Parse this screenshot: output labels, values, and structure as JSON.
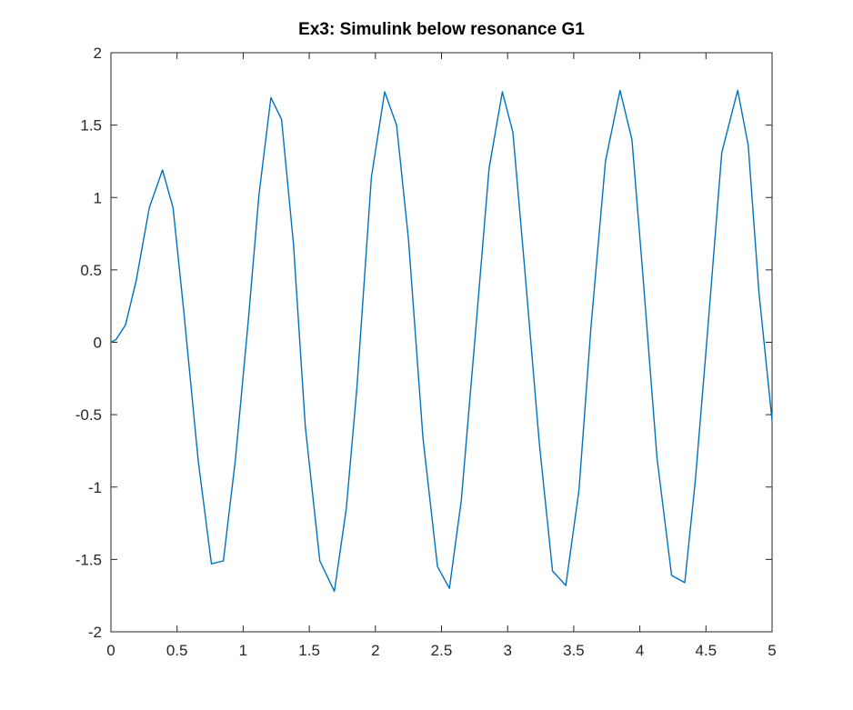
{
  "chart_data": {
    "type": "line",
    "title": "Ex3: Simulink below resonance G1",
    "xlabel": "",
    "ylabel": "",
    "xlim": [
      0,
      5
    ],
    "ylim": [
      -2,
      2
    ],
    "xticks": [
      "0",
      "0.5",
      "1",
      "1.5",
      "2",
      "2.5",
      "3",
      "3.5",
      "4",
      "4.5",
      "5"
    ],
    "yticks": [
      "2",
      "1.5",
      "1",
      "0.5",
      "0",
      "-0.5",
      "-1",
      "-1.5",
      "-2"
    ],
    "grid": false,
    "line_color": "#0072BD",
    "series": [
      {
        "x": [
          0,
          0.04,
          0.11,
          0.19,
          0.29,
          0.39,
          0.47,
          0.55,
          0.66,
          0.76,
          0.85,
          0.94,
          1.04,
          1.12,
          1.21,
          1.29,
          1.38,
          1.47,
          1.58,
          1.69,
          1.78,
          1.86,
          1.97,
          2.07,
          2.16,
          2.25,
          2.36,
          2.47,
          2.56,
          2.65,
          2.76,
          2.86,
          2.96,
          3.04,
          3.13,
          3.24,
          3.34,
          3.44,
          3.54,
          3.63,
          3.74,
          3.85,
          3.94,
          4.02,
          4.13,
          4.24,
          4.34,
          4.42,
          4.51,
          4.62,
          4.74,
          4.82,
          4.9,
          5.0
        ],
        "y": [
          0,
          0.02,
          0.12,
          0.42,
          0.93,
          1.19,
          0.93,
          0.22,
          -0.82,
          -1.53,
          -1.51,
          -0.82,
          0.16,
          1.02,
          1.69,
          1.54,
          0.68,
          -0.58,
          -1.51,
          -1.72,
          -1.15,
          -0.32,
          1.14,
          1.73,
          1.5,
          0.71,
          -0.66,
          -1.55,
          -1.7,
          -1.09,
          0.1,
          1.2,
          1.73,
          1.45,
          0.5,
          -0.7,
          -1.58,
          -1.68,
          -1.02,
          0.1,
          1.25,
          1.74,
          1.4,
          0.5,
          -0.8,
          -1.61,
          -1.66,
          -0.95,
          0.05,
          1.31,
          1.74,
          1.36,
          0.35,
          -0.54
        ]
      }
    ]
  }
}
